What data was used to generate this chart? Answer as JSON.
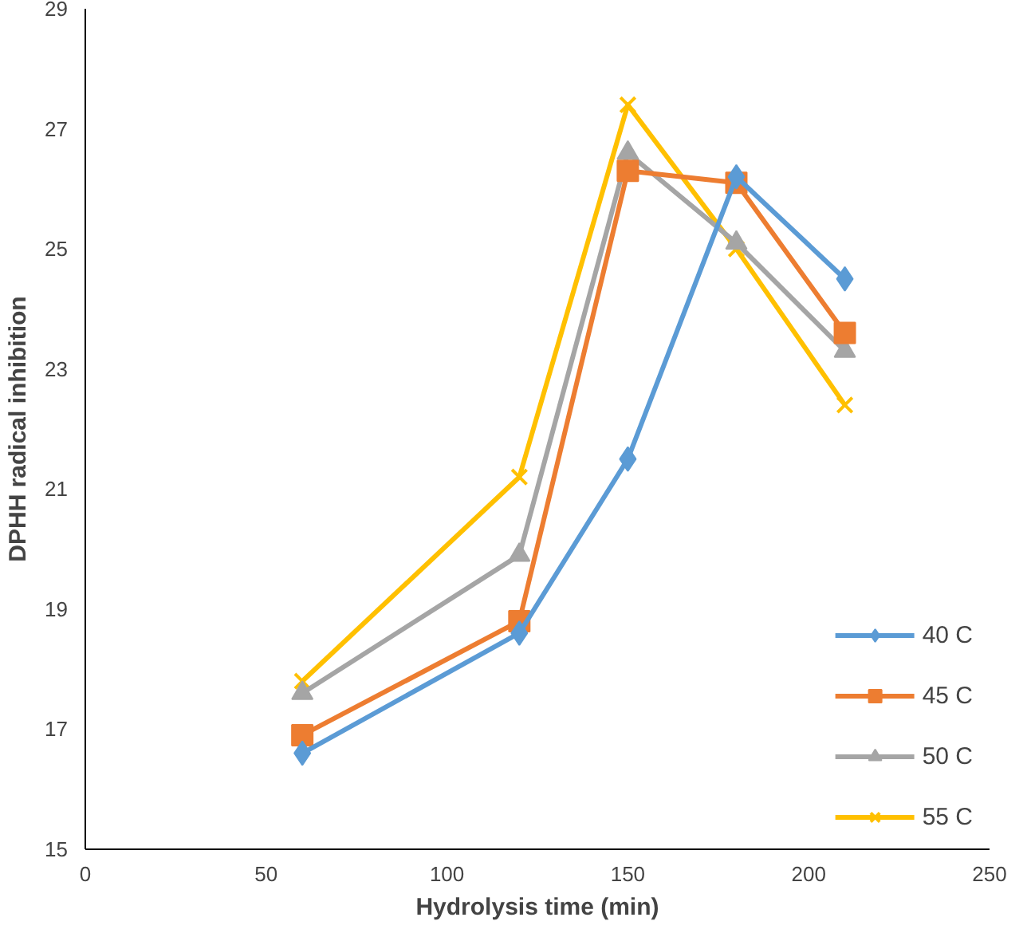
{
  "chart_data": {
    "type": "line",
    "xlabel": "Hydrolysis time (min)",
    "ylabel": "DPHH radical inhibition",
    "x": [
      60,
      120,
      150,
      180,
      210
    ],
    "xlim": [
      0,
      250
    ],
    "xticks": [
      0,
      50,
      100,
      150,
      200,
      250
    ],
    "ylim": [
      15,
      29
    ],
    "yticks": [
      15,
      17,
      19,
      21,
      23,
      25,
      27,
      29
    ],
    "grid": false,
    "legend": "bottom right",
    "line_style": "solid",
    "series": [
      {
        "name": "40 C",
        "color": "#5b9bd5",
        "marker": "diamond",
        "values": [
          16.6,
          18.6,
          21.5,
          26.2,
          24.5
        ]
      },
      {
        "name": "45 C",
        "color": "#ed7d31",
        "marker": "square",
        "values": [
          16.9,
          18.8,
          26.3,
          26.1,
          23.6
        ]
      },
      {
        "name": "50 C",
        "color": "#a5a5a5",
        "marker": "triangle",
        "values": [
          17.6,
          19.9,
          26.6,
          25.1,
          23.3
        ]
      },
      {
        "name": "55 C",
        "color": "#ffc000",
        "marker": "cross",
        "values": [
          17.8,
          21.2,
          27.4,
          25.0,
          22.4
        ]
      }
    ]
  }
}
